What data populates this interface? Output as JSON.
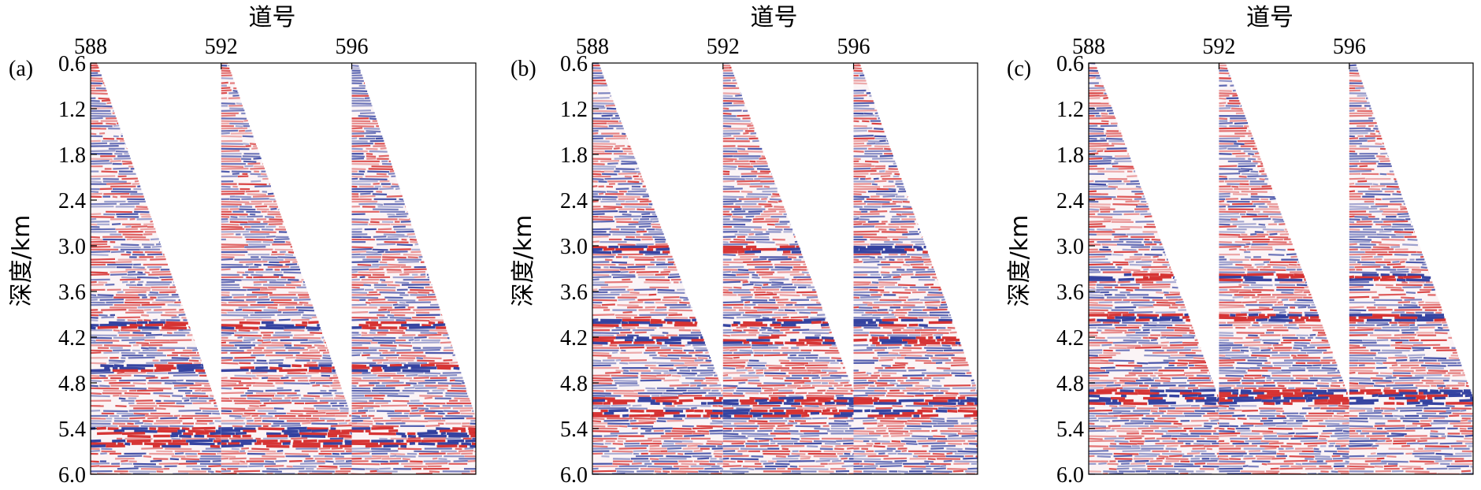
{
  "chart_data": [
    {
      "type": "heatmap",
      "panel_label": "(a)",
      "xlabel": "道号",
      "ylabel": "深度/km",
      "x_ticks": [
        "588",
        "592",
        "596"
      ],
      "y_ticks": [
        "0.6",
        "1.2",
        "1.8",
        "2.4",
        "3.0",
        "3.6",
        "4.2",
        "4.8",
        "5.4",
        "6.0"
      ],
      "x_tick_values": [
        588,
        592,
        596
      ],
      "y_tick_values": [
        0.6,
        1.2,
        1.8,
        2.4,
        3.0,
        3.6,
        4.2,
        4.8,
        5.4,
        6.0
      ],
      "xlim": [
        588,
        599.8
      ],
      "ylim": [
        0.6,
        6.0
      ],
      "gathers": [
        {
          "start_trace": 588,
          "end_trace": 592,
          "top_depth": 0.6,
          "bottom_depth": 5.25
        },
        {
          "start_trace": 592,
          "end_trace": 596,
          "top_depth": 0.6,
          "bottom_depth": 5.25
        },
        {
          "start_trace": 596,
          "end_trace": 599.8,
          "top_depth": 0.6,
          "bottom_depth": 5.25
        }
      ],
      "strong_reflector_depths": [
        4.05,
        4.6,
        5.45,
        5.6
      ],
      "colors": {
        "positive": "#d42a2a",
        "negative": "#2b3a9c",
        "background": "#ffffff"
      }
    },
    {
      "type": "heatmap",
      "panel_label": "(b)",
      "xlabel": "道号",
      "ylabel": "深度/km",
      "x_ticks": [
        "588",
        "592",
        "596"
      ],
      "y_ticks": [
        "0.6",
        "1.2",
        "1.8",
        "2.4",
        "3.0",
        "3.6",
        "4.2",
        "4.8",
        "5.4",
        "6.0"
      ],
      "x_tick_values": [
        588,
        592,
        596
      ],
      "y_tick_values": [
        0.6,
        1.2,
        1.8,
        2.4,
        3.0,
        3.6,
        4.2,
        4.8,
        5.4,
        6.0
      ],
      "xlim": [
        588,
        599.8
      ],
      "ylim": [
        0.6,
        6.0
      ],
      "gathers": [
        {
          "start_trace": 588,
          "end_trace": 592,
          "top_depth": 0.6,
          "bottom_depth": 4.9
        },
        {
          "start_trace": 592,
          "end_trace": 596,
          "top_depth": 0.6,
          "bottom_depth": 4.9
        },
        {
          "start_trace": 596,
          "end_trace": 599.8,
          "top_depth": 0.6,
          "bottom_depth": 4.9
        }
      ],
      "strong_reflector_depths": [
        3.05,
        4.0,
        4.25,
        5.05,
        5.2
      ],
      "colors": {
        "positive": "#d42a2a",
        "negative": "#2b3a9c",
        "background": "#ffffff"
      }
    },
    {
      "type": "heatmap",
      "panel_label": "(c)",
      "xlabel": "道号",
      "ylabel": "深度/km",
      "x_ticks": [
        "588",
        "592",
        "596"
      ],
      "y_ticks": [
        "0.6",
        "1.2",
        "1.8",
        "2.4",
        "3.0",
        "3.6",
        "4.2",
        "4.8",
        "5.4",
        "6.0"
      ],
      "x_tick_values": [
        588,
        592,
        596
      ],
      "y_tick_values": [
        0.6,
        1.2,
        1.8,
        2.4,
        3.0,
        3.6,
        4.2,
        4.8,
        5.4,
        6.0
      ],
      "xlim": [
        588,
        599.8
      ],
      "ylim": [
        0.6,
        6.0
      ],
      "gathers": [
        {
          "start_trace": 588,
          "end_trace": 592,
          "top_depth": 0.6,
          "bottom_depth": 5.0
        },
        {
          "start_trace": 592,
          "end_trace": 596,
          "top_depth": 0.6,
          "bottom_depth": 5.0
        },
        {
          "start_trace": 596,
          "end_trace": 599.8,
          "top_depth": 0.6,
          "bottom_depth": 5.0
        }
      ],
      "strong_reflector_depths": [
        3.4,
        3.95,
        4.95,
        5.05
      ],
      "colors": {
        "positive": "#d42a2a",
        "negative": "#2b3a9c",
        "background": "#ffffff"
      }
    }
  ]
}
